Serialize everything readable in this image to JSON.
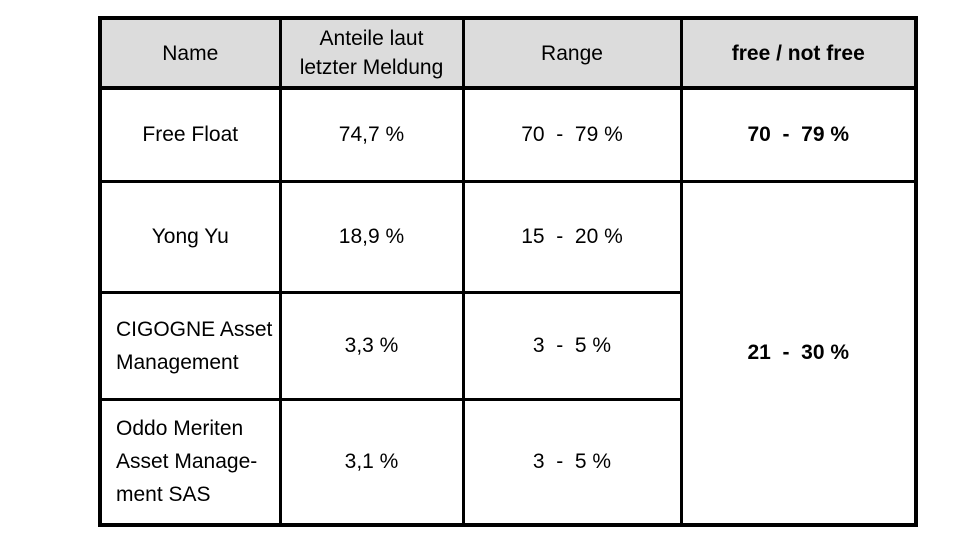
{
  "table": {
    "headers": {
      "name": "Name",
      "anteile_lines": [
        "Anteile laut",
        "letzter Meldung"
      ],
      "range": "Range",
      "free": "free / not free"
    },
    "rows": [
      {
        "name_lines": [
          "Free Float"
        ],
        "anteil": "74,7 %",
        "range": "70  -  79 %",
        "free": "70  -  79 %"
      },
      {
        "name_lines": [
          "Yong Yu"
        ],
        "anteil": "18,9 %",
        "range": "15  -  20 %"
      },
      {
        "name_lines": [
          "CIGOGNE Asset",
          "Management"
        ],
        "anteil": "3,3 %",
        "range": "3  -  5 %"
      },
      {
        "name_lines": [
          "Oddo Meriten",
          "Asset Manage-",
          "ment SAS"
        ],
        "anteil": "3,1 %",
        "range": "3  -  5 %"
      }
    ],
    "merged_free": "21  -  30 %",
    "colors": {
      "header_bg": "#dcdcdc",
      "border": "#000000",
      "text": "#000000",
      "page_bg": "#ffffff"
    }
  }
}
